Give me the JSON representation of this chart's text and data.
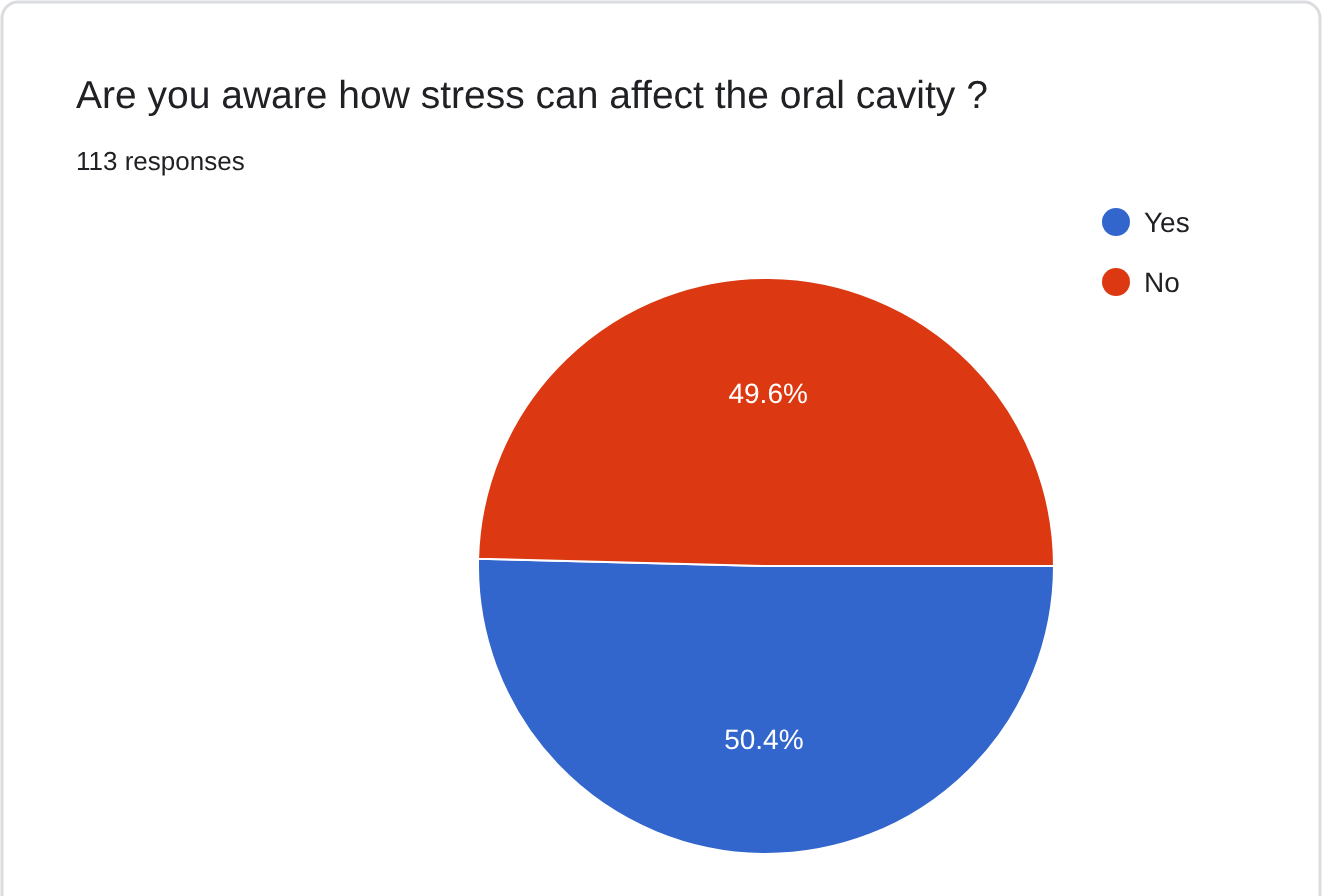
{
  "chart_data": {
    "type": "pie",
    "title": "Are you aware how stress can affect the oral cavity ?",
    "subtitle": "113 responses",
    "categories": [
      "Yes",
      "No"
    ],
    "values": [
      50.4,
      49.6
    ],
    "colors": [
      "#3366cc",
      "#dc3912"
    ],
    "value_labels": [
      "50.4%",
      "49.6%"
    ],
    "legend": "top right"
  }
}
